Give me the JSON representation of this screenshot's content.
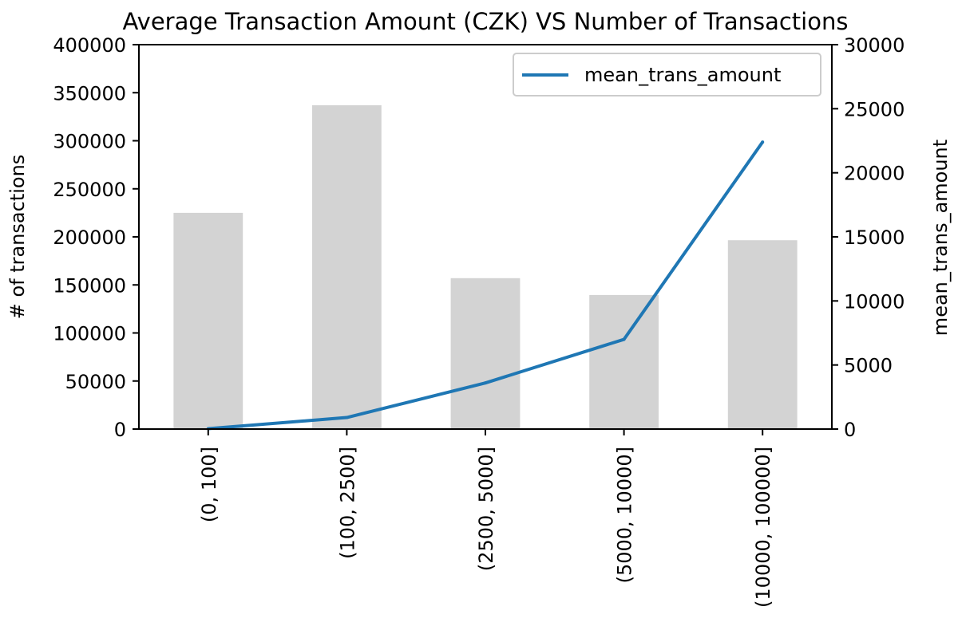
{
  "chart_data": {
    "type": "bar",
    "title": "Average Transaction Amount (CZK) VS Number of Transactions",
    "xlabel": "",
    "ylabel": "# of transactions",
    "y2label": "mean_trans_amount",
    "categories": [
      "(0, 100]",
      "(100, 2500]",
      "(2500, 5000]",
      "(5000, 10000]",
      "(10000, 100000]"
    ],
    "ylim": [
      0,
      400000
    ],
    "y2lim": [
      0,
      30000
    ],
    "yticks": [
      "0",
      "50000",
      "100000",
      "150000",
      "200000",
      "250000",
      "300000",
      "350000",
      "400000"
    ],
    "y2ticks": [
      "0",
      "5000",
      "10000",
      "15000",
      "20000",
      "25000",
      "30000"
    ],
    "grid": false,
    "legend_position": "top-right",
    "series": [
      {
        "type": "bar",
        "axis": "left",
        "color": "#d3d3d3",
        "values": [
          225000,
          337000,
          157000,
          139500,
          196500
        ]
      },
      {
        "type": "line",
        "axis": "right",
        "name": "mean_trans_amount",
        "color": "#1f77b4",
        "values": [
          30,
          900,
          3600,
          7000,
          22400
        ]
      }
    ]
  }
}
